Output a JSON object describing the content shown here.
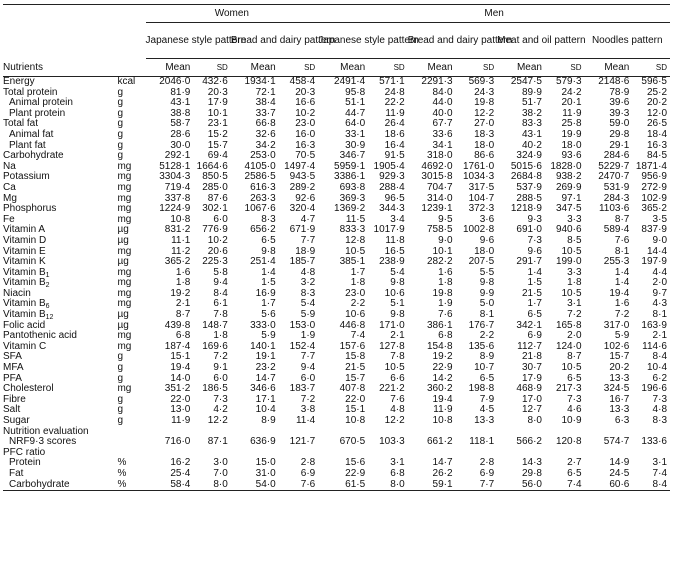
{
  "header": {
    "women": "Women",
    "men": "Men",
    "groups": [
      "Japanese style pattern",
      "Bread and dairy pattern",
      "Japanese style pattern",
      "Bread and dairy pattern",
      "Meat and oil pattern",
      "Noodles pattern"
    ],
    "nutrients": "Nutrients",
    "mean": "Mean",
    "sd": "SD"
  },
  "rows": [
    {
      "label": "Energy",
      "unit": "kcal",
      "indent": 0,
      "vals": [
        "2046·0",
        "432·6",
        "1934·1",
        "458·4",
        "2491·4",
        "571·1",
        "2291·3",
        "569·3",
        "2547·5",
        "579·3",
        "2148·6",
        "596·5"
      ]
    },
    {
      "label": "Total protein",
      "unit": "g",
      "indent": 0,
      "vals": [
        "81·9",
        "20·3",
        "72·1",
        "20·3",
        "95·8",
        "24·8",
        "84·0",
        "24·3",
        "89·9",
        "24·2",
        "78·9",
        "25·2"
      ]
    },
    {
      "label": "Animal protein",
      "unit": "g",
      "indent": 1,
      "vals": [
        "43·1",
        "17·9",
        "38·4",
        "16·6",
        "51·1",
        "22·2",
        "44·0",
        "19·8",
        "51·7",
        "20·1",
        "39·6",
        "20·2"
      ]
    },
    {
      "label": "Plant protein",
      "unit": "g",
      "indent": 1,
      "vals": [
        "38·8",
        "10·1",
        "33·7",
        "10·2",
        "44·7",
        "11·9",
        "40·0",
        "12·2",
        "38·2",
        "11·9",
        "39·3",
        "12·0"
      ]
    },
    {
      "label": "Total fat",
      "unit": "g",
      "indent": 0,
      "vals": [
        "58·7",
        "23·1",
        "66·8",
        "23·0",
        "64·0",
        "26·4",
        "67·7",
        "27·0",
        "83·3",
        "25·8",
        "59·0",
        "26·5"
      ]
    },
    {
      "label": "Animal fat",
      "unit": "g",
      "indent": 1,
      "vals": [
        "28·6",
        "15·2",
        "32·6",
        "16·0",
        "33·1",
        "18·6",
        "33·6",
        "18·3",
        "43·1",
        "19·9",
        "29·8",
        "18·4"
      ]
    },
    {
      "label": "Plant fat",
      "unit": "g",
      "indent": 1,
      "vals": [
        "30·0",
        "15·7",
        "34·2",
        "16·3",
        "30·9",
        "16·4",
        "34·1",
        "18·0",
        "40·2",
        "18·0",
        "29·1",
        "16·3"
      ]
    },
    {
      "label": "Carbohydrate",
      "unit": "g",
      "indent": 0,
      "vals": [
        "292·1",
        "69·4",
        "253·0",
        "70·5",
        "346·7",
        "91·5",
        "318·0",
        "86·6",
        "324·9",
        "93·6",
        "284·6",
        "84·5"
      ]
    },
    {
      "label": "Na",
      "unit": "mg",
      "indent": 0,
      "vals": [
        "5128·1",
        "1664·6",
        "4105·0",
        "1497·4",
        "5959·1",
        "1905·4",
        "4692·0",
        "1761·0",
        "5015·6",
        "1828·0",
        "5229·7",
        "1871·4"
      ]
    },
    {
      "label": "Potassium",
      "unit": "mg",
      "indent": 0,
      "vals": [
        "3304·3",
        "850·5",
        "2586·5",
        "943·5",
        "3386·1",
        "929·3",
        "3015·8",
        "1034·3",
        "2684·8",
        "938·2",
        "2470·7",
        "956·9"
      ]
    },
    {
      "label": "Ca",
      "unit": "mg",
      "indent": 0,
      "vals": [
        "719·4",
        "285·0",
        "616·3",
        "289·2",
        "693·8",
        "288·4",
        "704·7",
        "317·5",
        "537·9",
        "269·9",
        "531·9",
        "272·9"
      ]
    },
    {
      "label": "Mg",
      "unit": "mg",
      "indent": 0,
      "vals": [
        "337·8",
        "87·6",
        "263·3",
        "92·6",
        "369·3",
        "96·5",
        "314·0",
        "104·7",
        "288·5",
        "97·1",
        "284·3",
        "102·9"
      ]
    },
    {
      "label": "Phosphorus",
      "unit": "mg",
      "indent": 0,
      "vals": [
        "1224·9",
        "302·1",
        "1067·6",
        "320·4",
        "1369·2",
        "344·3",
        "1239·1",
        "372·3",
        "1218·9",
        "347·5",
        "1103·6",
        "365·2"
      ]
    },
    {
      "label": "Fe",
      "unit": "mg",
      "indent": 0,
      "vals": [
        "10·8",
        "6·0",
        "8·3",
        "4·7",
        "11·5",
        "3·4",
        "9·5",
        "3·6",
        "9·3",
        "3·3",
        "8·7",
        "3·5"
      ]
    },
    {
      "label": "Vitamin A",
      "unit": "µg",
      "indent": 0,
      "vals": [
        "831·2",
        "776·9",
        "656·2",
        "671·9",
        "833·3",
        "1017·9",
        "758·5",
        "1002·8",
        "691·0",
        "940·6",
        "589·4",
        "837·9"
      ]
    },
    {
      "label": "Vitamin D",
      "unit": "µg",
      "indent": 0,
      "vals": [
        "11·1",
        "10·2",
        "6·5",
        "7·7",
        "12·8",
        "11·8",
        "9·0",
        "9·6",
        "7·3",
        "8·5",
        "7·6",
        "9·0"
      ]
    },
    {
      "label": "Vitamin E",
      "unit": "mg",
      "indent": 0,
      "vals": [
        "11·2",
        "20·6",
        "9·8",
        "18·9",
        "10·5",
        "16·5",
        "10·1",
        "18·0",
        "9·6",
        "10·5",
        "8·1",
        "14·4"
      ]
    },
    {
      "label": "Vitamin K",
      "unit": "µg",
      "indent": 0,
      "vals": [
        "365·2",
        "225·3",
        "251·4",
        "185·7",
        "385·1",
        "238·9",
        "282·2",
        "207·5",
        "291·7",
        "199·0",
        "255·3",
        "197·9"
      ]
    },
    {
      "label": "Vitamin B",
      "sub": "1",
      "unit": "mg",
      "indent": 0,
      "vals": [
        "1·6",
        "5·8",
        "1·4",
        "4·8",
        "1·7",
        "5·4",
        "1·6",
        "5·5",
        "1·4",
        "3·3",
        "1·4",
        "4·4"
      ]
    },
    {
      "label": "Vitamin B",
      "sub": "2",
      "unit": "mg",
      "indent": 0,
      "vals": [
        "1·8",
        "9·4",
        "1·5",
        "3·2",
        "1·8",
        "9·8",
        "1·8",
        "9·8",
        "1·5",
        "1·8",
        "1·4",
        "2·0"
      ]
    },
    {
      "label": "Niacin",
      "unit": "mg",
      "indent": 0,
      "vals": [
        "19·2",
        "8·4",
        "16·9",
        "8·3",
        "23·0",
        "10·6",
        "19·8",
        "9·9",
        "21·5",
        "10·5",
        "19·4",
        "9·7"
      ]
    },
    {
      "label": "Vitamin B",
      "sub": "6",
      "unit": "mg",
      "indent": 0,
      "vals": [
        "2·1",
        "6·1",
        "1·7",
        "5·4",
        "2·2",
        "5·1",
        "1·9",
        "5·0",
        "1·7",
        "3·1",
        "1·6",
        "4·3"
      ]
    },
    {
      "label": "Vitamin B",
      "sub": "12",
      "unit": "µg",
      "indent": 0,
      "vals": [
        "8·7",
        "7·8",
        "5·6",
        "5·9",
        "10·6",
        "9·8",
        "7·6",
        "8·1",
        "6·5",
        "7·2",
        "7·2",
        "8·1"
      ]
    },
    {
      "label": "Folic acid",
      "unit": "µg",
      "indent": 0,
      "vals": [
        "439·8",
        "148·7",
        "333·0",
        "153·0",
        "446·8",
        "171·0",
        "386·1",
        "176·7",
        "342·1",
        "165·8",
        "317·0",
        "163·9"
      ]
    },
    {
      "label": "Pantothenic acid",
      "unit": "mg",
      "indent": 0,
      "vals": [
        "6·8",
        "1·8",
        "5·9",
        "1·9",
        "7·4",
        "2·1",
        "6·8",
        "2·2",
        "6·9",
        "2·0",
        "5·9",
        "2·1"
      ]
    },
    {
      "label": "Vitamin C",
      "unit": "mg",
      "indent": 0,
      "vals": [
        "187·4",
        "169·6",
        "140·1",
        "152·4",
        "157·6",
        "127·8",
        "154·8",
        "135·6",
        "112·7",
        "124·0",
        "102·6",
        "114·6"
      ]
    },
    {
      "label": "SFA",
      "unit": "g",
      "indent": 0,
      "vals": [
        "15·1",
        "7·2",
        "19·1",
        "7·7",
        "15·8",
        "7·8",
        "19·2",
        "8·9",
        "21·8",
        "8·7",
        "15·7",
        "8·4"
      ]
    },
    {
      "label": "MFA",
      "unit": "g",
      "indent": 0,
      "vals": [
        "19·4",
        "9·1",
        "23·2",
        "9·4",
        "21·5",
        "10·5",
        "22·9",
        "10·7",
        "30·7",
        "10·5",
        "20·2",
        "10·4"
      ]
    },
    {
      "label": "PFA",
      "unit": "g",
      "indent": 0,
      "vals": [
        "14·0",
        "6·0",
        "14·7",
        "6·0",
        "15·7",
        "6·6",
        "14·2",
        "6·5",
        "17·9",
        "6·5",
        "13·3",
        "6·2"
      ]
    },
    {
      "label": "Cholesterol",
      "unit": "mg",
      "indent": 0,
      "vals": [
        "351·2",
        "186·5",
        "346·6",
        "183·7",
        "407·8",
        "221·2",
        "360·2",
        "198·8",
        "468·9",
        "217·3",
        "324·5",
        "196·6"
      ]
    },
    {
      "label": "Fibre",
      "unit": "g",
      "indent": 0,
      "vals": [
        "22·0",
        "7·3",
        "17·1",
        "7·2",
        "22·0",
        "7·6",
        "19·4",
        "7·9",
        "17·0",
        "7·3",
        "16·7",
        "7·3"
      ]
    },
    {
      "label": "Salt",
      "unit": "g",
      "indent": 0,
      "vals": [
        "13·0",
        "4·2",
        "10·4",
        "3·8",
        "15·1",
        "4·8",
        "11·9",
        "4·5",
        "12·7",
        "4·6",
        "13·3",
        "4·8"
      ]
    },
    {
      "label": "Sugar",
      "unit": "g",
      "indent": 0,
      "vals": [
        "11·9",
        "12·2",
        "8·9",
        "11·4",
        "10·8",
        "12·2",
        "10·8",
        "13·3",
        "8·0",
        "10·9",
        "6·3",
        "8·3"
      ]
    },
    {
      "label": "Nutrition evaluation",
      "unit": "",
      "indent": 0,
      "vals": [
        "",
        "",
        "",
        "",
        "",
        "",
        "",
        "",
        "",
        "",
        "",
        ""
      ]
    },
    {
      "label": "NRF9·3 scores",
      "unit": "",
      "indent": 2,
      "vals": [
        "716·0",
        "87·1",
        "636·9",
        "121·7",
        "670·5",
        "103·3",
        "661·2",
        "118·1",
        "566·2",
        "120·8",
        "574·7",
        "133·6"
      ]
    },
    {
      "label": "PFC ratio",
      "unit": "",
      "indent": 0,
      "vals": [
        "",
        "",
        "",
        "",
        "",
        "",
        "",
        "",
        "",
        "",
        "",
        ""
      ]
    },
    {
      "label": "Protein",
      "unit": "%",
      "indent": 2,
      "vals": [
        "16·2",
        "3·0",
        "15·0",
        "2·8",
        "15·6",
        "3·1",
        "14·7",
        "2·8",
        "14·3",
        "2·7",
        "14·9",
        "3·1"
      ]
    },
    {
      "label": "Fat",
      "unit": "%",
      "indent": 2,
      "vals": [
        "25·4",
        "7·0",
        "31·0",
        "6·9",
        "22·9",
        "6·8",
        "26·2",
        "6·9",
        "29·8",
        "6·5",
        "24·5",
        "7·4"
      ]
    },
    {
      "label": "Carbohydrate",
      "unit": "%",
      "indent": 2,
      "vals": [
        "58·4",
        "8·0",
        "54·0",
        "7·6",
        "61·5",
        "8·0",
        "59·1",
        "7·7",
        "56·0",
        "7·4",
        "60·6",
        "8·4"
      ]
    }
  ]
}
